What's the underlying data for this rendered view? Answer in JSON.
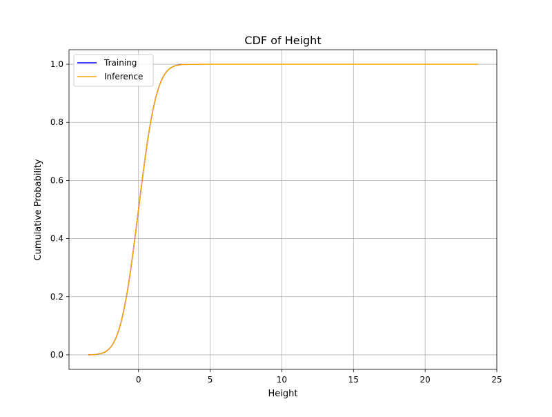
{
  "chart_data": {
    "type": "line",
    "title": "CDF of Height",
    "xlabel": "Height",
    "ylabel": "Cumulative Probability",
    "xlim": [
      -4.85,
      25.0
    ],
    "ylim": [
      -0.05,
      1.05
    ],
    "xticks": [
      0,
      5,
      10,
      15,
      20,
      25
    ],
    "xtick_labels": [
      "0",
      "5",
      "10",
      "15",
      "20",
      "25"
    ],
    "yticks": [
      0.0,
      0.2,
      0.4,
      0.6,
      0.8,
      1.0
    ],
    "ytick_labels": [
      "0.0",
      "0.2",
      "0.4",
      "0.6",
      "0.8",
      "1.0"
    ],
    "grid": true,
    "legend_position": "upper-left",
    "series": [
      {
        "name": "Training",
        "color": "#0000ff",
        "x": [
          -3.5,
          -3.0,
          -2.8,
          -2.6,
          -2.4,
          -2.2,
          -2.0,
          -1.8,
          -1.6,
          -1.4,
          -1.2,
          -1.0,
          -0.8,
          -0.6,
          -0.4,
          -0.2,
          0.0,
          0.2,
          0.4,
          0.6,
          0.8,
          1.0,
          1.2,
          1.4,
          1.6,
          1.8,
          2.0,
          2.2,
          2.5,
          3.0
        ],
        "y": [
          0.0,
          0.001,
          0.003,
          0.005,
          0.008,
          0.014,
          0.023,
          0.036,
          0.055,
          0.081,
          0.115,
          0.159,
          0.212,
          0.274,
          0.345,
          0.421,
          0.5,
          0.579,
          0.655,
          0.726,
          0.788,
          0.841,
          0.885,
          0.919,
          0.945,
          0.964,
          0.977,
          0.986,
          0.994,
          1.0
        ]
      },
      {
        "name": "Inference",
        "color": "#ffa500",
        "x": [
          -3.5,
          -3.0,
          -2.8,
          -2.6,
          -2.4,
          -2.2,
          -2.0,
          -1.8,
          -1.6,
          -1.4,
          -1.2,
          -1.0,
          -0.8,
          -0.6,
          -0.4,
          -0.2,
          0.0,
          0.2,
          0.4,
          0.6,
          0.8,
          1.0,
          1.2,
          1.4,
          1.6,
          1.8,
          2.0,
          2.2,
          2.5,
          3.0,
          5.0,
          10.0,
          15.0,
          20.0,
          23.7
        ],
        "y": [
          0.0,
          0.001,
          0.003,
          0.005,
          0.008,
          0.014,
          0.023,
          0.036,
          0.055,
          0.081,
          0.115,
          0.159,
          0.212,
          0.274,
          0.345,
          0.421,
          0.5,
          0.579,
          0.655,
          0.726,
          0.788,
          0.841,
          0.885,
          0.919,
          0.945,
          0.964,
          0.977,
          0.986,
          0.994,
          0.999,
          1.0,
          1.0,
          1.0,
          1.0,
          1.0
        ]
      }
    ]
  }
}
